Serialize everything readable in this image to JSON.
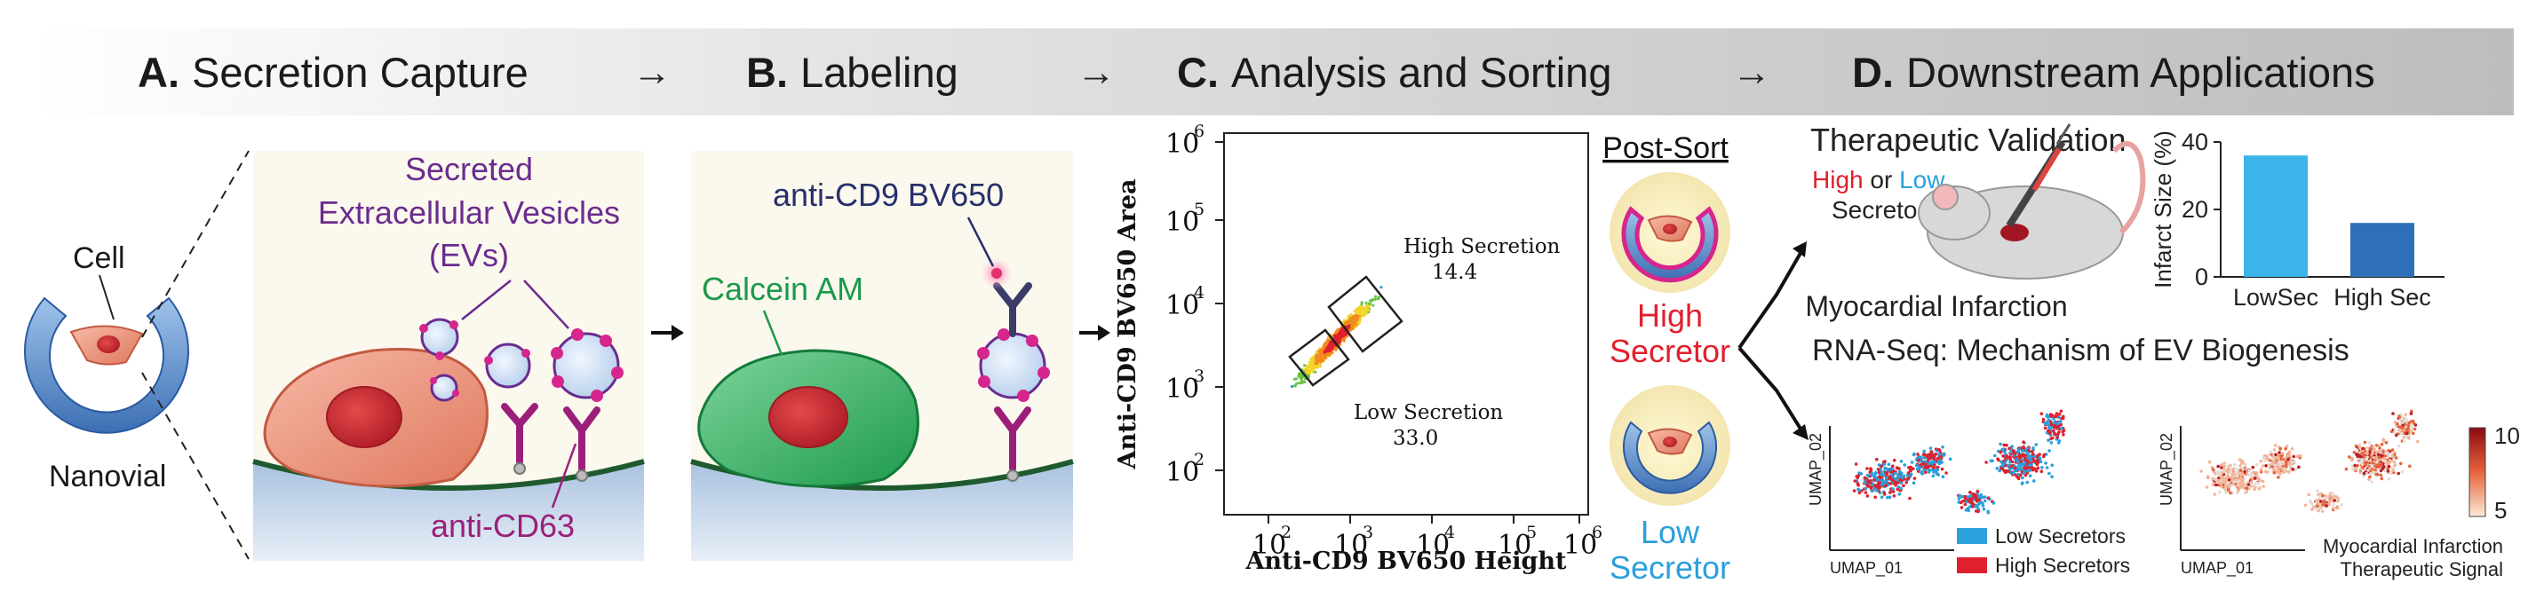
{
  "steps": [
    {
      "letter": "A.",
      "title": "Secretion Capture"
    },
    {
      "letter": "B.",
      "title": "Labeling"
    },
    {
      "letter": "C.",
      "title": "Analysis and Sorting"
    },
    {
      "letter": "D.",
      "title": "Downstream Applications"
    }
  ],
  "step_arrow": "→",
  "panel_a": {
    "cell_label": "Cell",
    "nanovial_label": "Nanovial",
    "ev_label_lines": [
      "Secreted",
      "Extracellular Vesicles",
      "(EVs)"
    ],
    "antibody_label": "anti-CD63"
  },
  "panel_b": {
    "antibody_label": "anti-CD9 BV650",
    "dye_label": "Calcein AM"
  },
  "panel_c": {
    "xlabel": "Anti-CD9 BV650 Height",
    "ylabel": "Anti-CD9 BV650 Area",
    "x_ticks": [
      "10",
      "10",
      "10",
      "10",
      "10"
    ],
    "x_tick_exps": [
      "2",
      "3",
      "4",
      "5",
      "6"
    ],
    "y_ticks": [
      "10",
      "10",
      "10",
      "10",
      "10"
    ],
    "y_tick_exps": [
      "2",
      "3",
      "4",
      "5",
      "6"
    ],
    "gates": [
      {
        "name": "High Secretion",
        "value": "14.4"
      },
      {
        "name": "Low Secretion",
        "value": "33.0"
      }
    ],
    "post_sort_title": "Post-Sort",
    "high_label_lines": [
      "High",
      "Secretor"
    ],
    "low_label_lines": [
      "Low",
      "Secretor"
    ]
  },
  "panel_d": {
    "validation_title": "Therapeutic Validation",
    "injection_word_high": "High",
    "injection_word_or": " or ",
    "injection_word_low": "Low",
    "injection_line2": "Secretor",
    "mouse_caption": "Myocardial Infarction",
    "rnaseq_title": "RNA-Seq: Mechanism of EV Biogenesis",
    "umap_xlabel": "UMAP_01",
    "umap_ylabel": "UMAP_02",
    "legend": [
      {
        "label": "Low Secretors",
        "color": "#2aa0dc"
      },
      {
        "label": "High Secretors",
        "color": "#e0202e"
      }
    ],
    "colorbar_max": "10",
    "colorbar_min": "5",
    "score_caption_lines": [
      "Myocardial Infarction",
      "Therapeutic Signal"
    ]
  },
  "colors": {
    "high": "#e0202e",
    "low": "#2aa0dc",
    "ev_purple": "#6a2c8e",
    "calcein_green": "#1a9a4a",
    "cd63_magenta": "#9b1f7a"
  },
  "chart_data": [
    {
      "type": "bar",
      "categories": [
        "LowSec",
        "High Sec"
      ],
      "values": [
        36,
        16
      ],
      "ylabel": "Infarct Size (%)",
      "ylim": [
        0,
        40
      ],
      "yticks": [
        0,
        20,
        40
      ],
      "colors": [
        "#3cb4ea",
        "#2e6fba"
      ]
    }
  ]
}
